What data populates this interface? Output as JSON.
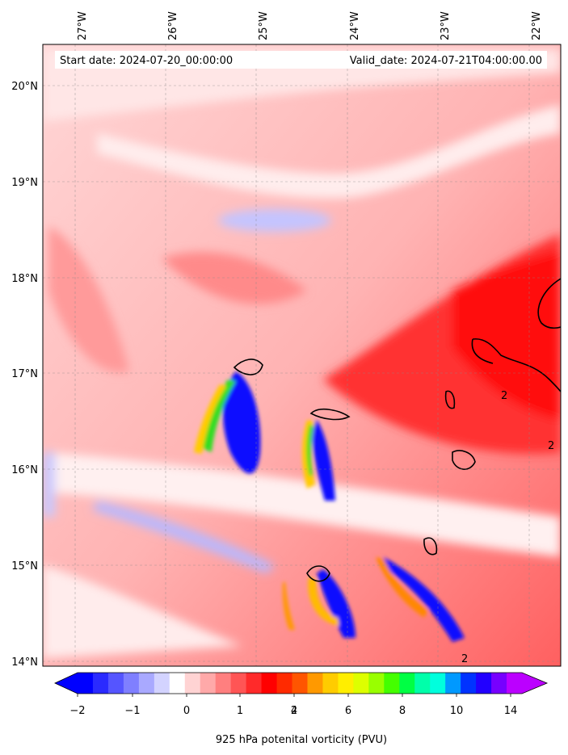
{
  "header": {
    "start_date": "Start date: 2024-07-20_00:00:00",
    "valid_date": "Valid_date: 2024-07-21T04:00:00.00"
  },
  "map": {
    "lon_ticks": [
      "27°W",
      "26°W",
      "25°W",
      "24°W",
      "23°W",
      "22°W"
    ],
    "lat_ticks": [
      "20°N",
      "19°N",
      "18°N",
      "17°N",
      "16°N",
      "15°N",
      "14°N"
    ],
    "lon_range": [
      -27.35,
      -21.65
    ],
    "lat_range": [
      13.95,
      20.45
    ],
    "contour_label": "2",
    "grid": true
  },
  "colorbar": {
    "label": "925 hPa potenital vorticity (PVU)",
    "tick_labels": [
      "−2",
      "−1",
      "0",
      "1",
      "2",
      "4",
      "6",
      "8",
      "10",
      "14"
    ],
    "colors": [
      "#0000ff",
      "#2a2aff",
      "#5555ff",
      "#7f7fff",
      "#a9a9ff",
      "#d3d3ff",
      "#ffffff",
      "#ffd3d3",
      "#ffa9a9",
      "#ff7f7f",
      "#ff5555",
      "#ff2a2a",
      "#ff0000",
      "#ff2a00",
      "#ff5500",
      "#ff9900",
      "#ffcc00",
      "#ffee00",
      "#ddff00",
      "#99ff00",
      "#44ff00",
      "#00ff44",
      "#00ffaa",
      "#00ffdd",
      "#0099ff",
      "#0033ff",
      "#2200ff",
      "#7700ff",
      "#bb00ff"
    ],
    "extend": "both"
  }
}
